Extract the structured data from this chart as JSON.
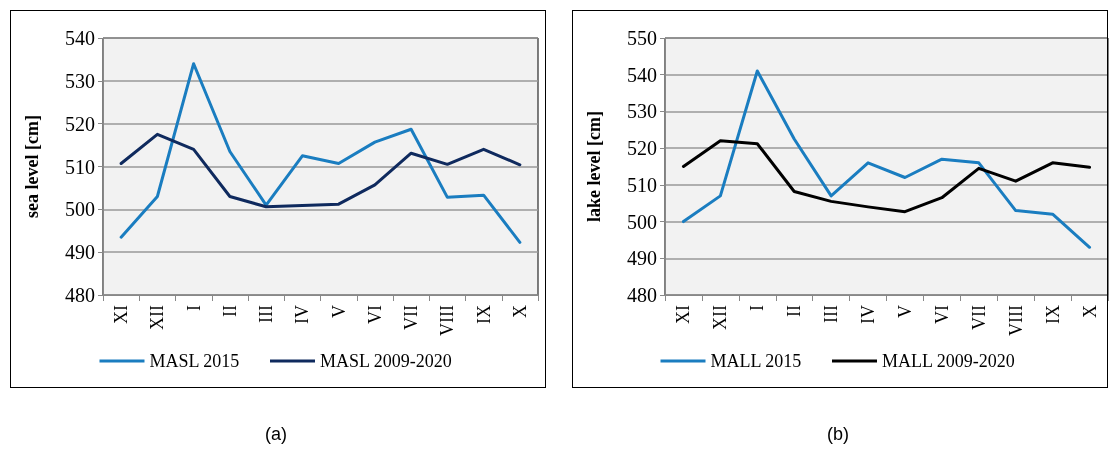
{
  "chart_data": [
    {
      "type": "line",
      "ylabel": "sea level [cm]",
      "categories": [
        "XI",
        "XII",
        "I",
        "II",
        "III",
        "IV",
        "V",
        "VI",
        "VII",
        "VIII",
        "IX",
        "X"
      ],
      "series": [
        {
          "name": "MASL 2015",
          "color": "#1a7dc0",
          "values": [
            493.5,
            503,
            534,
            513.5,
            501,
            512.5,
            510.7,
            515.7,
            518.7,
            502.8,
            503.3,
            492.3
          ]
        },
        {
          "name": "MASL 2009-2020",
          "color": "#0f2a5e",
          "values": [
            510.7,
            517.5,
            514,
            503,
            500.6,
            500.9,
            501.2,
            505.7,
            513.1,
            510.5,
            514,
            510.4
          ]
        }
      ],
      "ylim": [
        480,
        540
      ],
      "yticks": [
        480,
        490,
        500,
        510,
        520,
        530,
        540
      ],
      "grid": "y",
      "legend": "bottom",
      "marker": "none",
      "line_style": "solid",
      "annotations": [
        "(a)"
      ]
    },
    {
      "type": "line",
      "ylabel": "lake level [cm]",
      "categories": [
        "XI",
        "XII",
        "I",
        "II",
        "III",
        "IV",
        "V",
        "VI",
        "VII",
        "VIII",
        "IX",
        "X"
      ],
      "series": [
        {
          "name": "MALL 2015",
          "color": "#1a7dc0",
          "values": [
            500,
            507,
            541,
            522.5,
            507,
            516,
            512,
            517,
            516,
            503,
            502,
            493
          ]
        },
        {
          "name": "MALL 2009-2020",
          "color": "#000000",
          "values": [
            515,
            522,
            521.2,
            508.2,
            505.5,
            504,
            502.7,
            506.5,
            514.5,
            511,
            516,
            514.8
          ]
        }
      ],
      "ylim": [
        480,
        550
      ],
      "yticks": [
        480,
        490,
        500,
        510,
        520,
        530,
        540,
        550
      ],
      "grid": "y",
      "legend": "bottom",
      "marker": "none",
      "line_style": "solid",
      "annotations": [
        "(b)"
      ]
    }
  ]
}
